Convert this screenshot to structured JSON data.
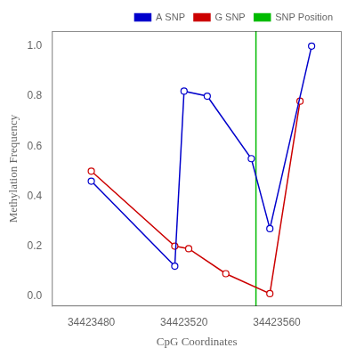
{
  "chart_data": {
    "type": "line",
    "xlabel": "CpG Coordinates",
    "ylabel": "Methylation Frequency",
    "series": [
      {
        "name": "A SNP",
        "color": "#0000cc",
        "marker": "circle",
        "line_style": "solid",
        "x": [
          34423480,
          34423516,
          34423520,
          34423530,
          34423549,
          34423557,
          34423575
        ],
        "values": [
          0.46,
          0.12,
          0.82,
          0.8,
          0.55,
          0.27,
          1.0
        ]
      },
      {
        "name": "G SNP",
        "color": "#cc0000",
        "marker": "circle",
        "line_style": "solid",
        "x": [
          34423480,
          34423516,
          34423522,
          34423538,
          34423557,
          34423570
        ],
        "values": [
          0.5,
          0.2,
          0.19,
          0.09,
          0.01,
          0.78
        ]
      },
      {
        "name": "SNP Position",
        "type": "vline",
        "color": "#00bb00",
        "line_style": "solid",
        "x": 34423551
      }
    ],
    "xlim": [
      34423463,
      34423588
    ],
    "ylim": [
      -0.04,
      1.06
    ],
    "xticks": [
      34423480,
      34423520,
      34423560
    ],
    "yticks": [
      {
        "value": 0,
        "label": "0.0"
      },
      0.2,
      0.4,
      0.6,
      0.8,
      {
        "value": 1,
        "label": "1.0"
      }
    ],
    "grid": false,
    "legend": "upper right"
  }
}
